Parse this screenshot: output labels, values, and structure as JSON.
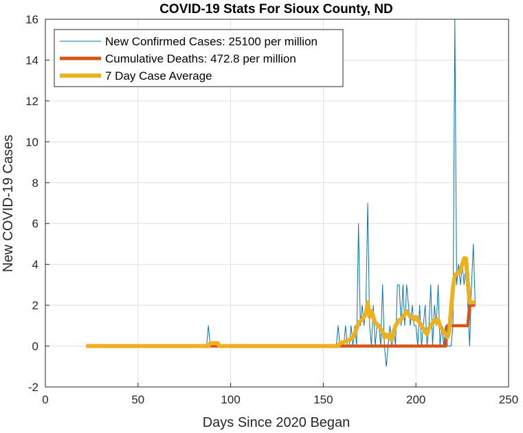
{
  "chart_data": {
    "type": "line",
    "title": "COVID-19 Stats For Sioux County, ND",
    "xlabel": "Days Since 2020 Began",
    "ylabel": "New COVID-19 Cases",
    "xlim": [
      0,
      250
    ],
    "ylim": [
      -2,
      16
    ],
    "xticks": [
      0,
      50,
      100,
      150,
      200,
      250
    ],
    "yticks": [
      -2,
      0,
      2,
      4,
      6,
      8,
      10,
      12,
      14,
      16
    ],
    "grid": true,
    "legend_position": "top-left",
    "series": [
      {
        "name": "New Confirmed Cases: 25100 per million",
        "color": "#0072BD",
        "width": 1,
        "points": [
          [
            22,
            0
          ],
          [
            86,
            0
          ],
          [
            87,
            0
          ],
          [
            88,
            1
          ],
          [
            89,
            0
          ],
          [
            90,
            0
          ],
          [
            157,
            0
          ],
          [
            158,
            1
          ],
          [
            159,
            0
          ],
          [
            160,
            0
          ],
          [
            161,
            0
          ],
          [
            162,
            1
          ],
          [
            163,
            0
          ],
          [
            164,
            0
          ],
          [
            165,
            1
          ],
          [
            166,
            0
          ],
          [
            167,
            1
          ],
          [
            168,
            0
          ],
          [
            169,
            6
          ],
          [
            170,
            1
          ],
          [
            171,
            2
          ],
          [
            172,
            1
          ],
          [
            173,
            2
          ],
          [
            174,
            7
          ],
          [
            175,
            1
          ],
          [
            176,
            0
          ],
          [
            177,
            2
          ],
          [
            178,
            0
          ],
          [
            179,
            1
          ],
          [
            180,
            1
          ],
          [
            181,
            0
          ],
          [
            182,
            3
          ],
          [
            183,
            0
          ],
          [
            184,
            -1
          ],
          [
            185,
            0
          ],
          [
            186,
            1
          ],
          [
            187,
            0
          ],
          [
            188,
            1
          ],
          [
            189,
            0
          ],
          [
            190,
            3
          ],
          [
            191,
            3
          ],
          [
            192,
            1
          ],
          [
            193,
            3
          ],
          [
            194,
            1
          ],
          [
            195,
            3
          ],
          [
            196,
            2
          ],
          [
            197,
            1
          ],
          [
            198,
            2
          ],
          [
            199,
            1
          ],
          [
            200,
            1
          ],
          [
            201,
            0
          ],
          [
            202,
            2
          ],
          [
            203,
            0
          ],
          [
            204,
            1
          ],
          [
            205,
            2
          ],
          [
            206,
            0
          ],
          [
            207,
            1
          ],
          [
            208,
            3
          ],
          [
            209,
            0
          ],
          [
            210,
            2
          ],
          [
            211,
            1
          ],
          [
            212,
            3
          ],
          [
            213,
            0
          ],
          [
            214,
            1
          ],
          [
            215,
            0
          ],
          [
            216,
            1
          ],
          [
            217,
            0
          ],
          [
            218,
            0
          ],
          [
            219,
            0
          ],
          [
            220,
            1
          ],
          [
            221,
            16
          ],
          [
            222,
            3
          ],
          [
            223,
            4
          ],
          [
            224,
            3
          ],
          [
            225,
            4
          ],
          [
            226,
            3
          ],
          [
            227,
            4
          ],
          [
            228,
            2
          ],
          [
            229,
            0
          ],
          [
            230,
            3
          ],
          [
            231,
            5
          ],
          [
            232,
            2
          ]
        ]
      },
      {
        "name": "Cumulative Deaths: 472.8 per million",
        "color": "#D95319",
        "width": 4.5,
        "points": [
          [
            22,
            0
          ],
          [
            157,
            0
          ],
          [
            216,
            0
          ],
          [
            217,
            1
          ],
          [
            228,
            1
          ],
          [
            229,
            2
          ],
          [
            232,
            2
          ]
        ]
      },
      {
        "name": "7 Day Case Average",
        "color": "#EDB120",
        "width": 6,
        "points": [
          [
            22,
            0
          ],
          [
            88,
            0
          ],
          [
            89,
            0.14
          ],
          [
            93,
            0.14
          ],
          [
            94,
            0
          ],
          [
            158,
            0
          ],
          [
            159,
            0.14
          ],
          [
            164,
            0.3
          ],
          [
            166,
            0.43
          ],
          [
            168,
            0.86
          ],
          [
            169,
            1.14
          ],
          [
            171,
            1.29
          ],
          [
            172,
            1.43
          ],
          [
            173,
            1.57
          ],
          [
            174,
            2.14
          ],
          [
            175,
            1.43
          ],
          [
            176,
            1.71
          ],
          [
            177,
            1.43
          ],
          [
            178,
            1.14
          ],
          [
            180,
            1.0
          ],
          [
            181,
            0.86
          ],
          [
            182,
            0.71
          ],
          [
            183,
            0.43
          ],
          [
            184,
            0.57
          ],
          [
            185,
            0.43
          ],
          [
            186,
            0.57
          ],
          [
            187,
            0.29
          ],
          [
            188,
            0.71
          ],
          [
            189,
            1.0
          ],
          [
            190,
            1.14
          ],
          [
            191,
            1.29
          ],
          [
            192,
            1.29
          ],
          [
            193,
            1.43
          ],
          [
            194,
            1.57
          ],
          [
            195,
            1.71
          ],
          [
            196,
            1.57
          ],
          [
            197,
            1.43
          ],
          [
            198,
            1.43
          ],
          [
            199,
            1.29
          ],
          [
            200,
            1.43
          ],
          [
            201,
            1.29
          ],
          [
            202,
            1.14
          ],
          [
            203,
            1.0
          ],
          [
            204,
            0.86
          ],
          [
            205,
            0.71
          ],
          [
            206,
            0.57
          ],
          [
            207,
            0.86
          ],
          [
            208,
            1.0
          ],
          [
            209,
            1.14
          ],
          [
            210,
            1.29
          ],
          [
            211,
            1.14
          ],
          [
            212,
            1.29
          ],
          [
            213,
            1.0
          ],
          [
            214,
            0.86
          ],
          [
            215,
            0.71
          ],
          [
            216,
            0.57
          ],
          [
            217,
            0.43
          ],
          [
            218,
            0.71
          ],
          [
            219,
            1.86
          ],
          [
            220,
            2.86
          ],
          [
            221,
            3.43
          ],
          [
            222,
            3.57
          ],
          [
            223,
            3.57
          ],
          [
            224,
            3.71
          ],
          [
            225,
            4.0
          ],
          [
            226,
            4.29
          ],
          [
            227,
            4.29
          ],
          [
            228,
            3.14
          ],
          [
            229,
            2.14
          ],
          [
            230,
            2.14
          ],
          [
            231,
            2.14
          ],
          [
            232,
            2.14
          ]
        ]
      }
    ]
  }
}
